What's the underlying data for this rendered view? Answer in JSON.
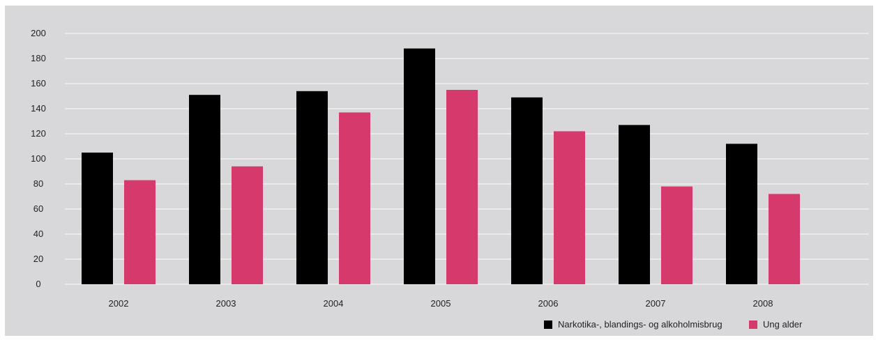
{
  "chart_data": {
    "type": "bar",
    "title": "",
    "xlabel": "",
    "ylabel": "",
    "categories": [
      "2002",
      "2003",
      "2004",
      "2005",
      "2006",
      "2007",
      "2008"
    ],
    "series": [
      {
        "name": "Narkotika-, blandings- og alkoholmisbrug",
        "color": "#000000",
        "values": [
          105,
          151,
          154,
          188,
          149,
          127,
          112
        ]
      },
      {
        "name": "Ung alder",
        "color": "#d63a6c",
        "values": [
          83,
          94,
          137,
          155,
          122,
          78,
          72
        ]
      }
    ],
    "ylim": [
      0,
      200
    ],
    "yticks": [
      "0",
      "20",
      "40",
      "60",
      "80",
      "100",
      "120",
      "140",
      "160",
      "180",
      "200"
    ],
    "grid": true,
    "legend_position": "bottom-right"
  }
}
